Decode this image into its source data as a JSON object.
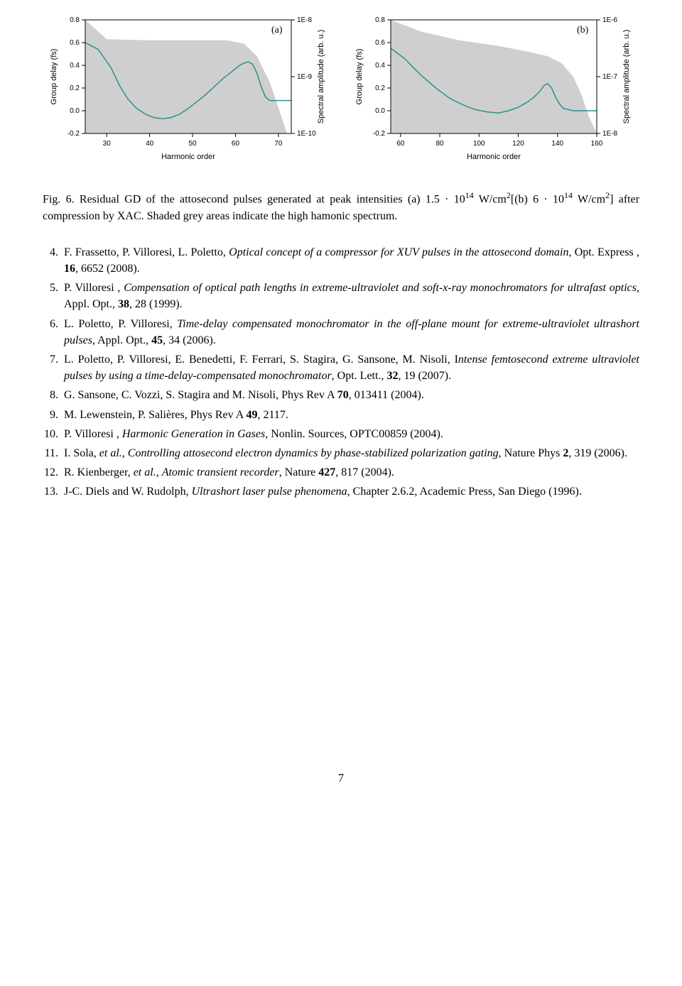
{
  "figure": {
    "panel_a": {
      "type": "line_with_area",
      "panel_label": "(a)",
      "xlabel": "Harmonic order",
      "ylabel_left": "Group delay (fs)",
      "ylabel_right": "Spectral amplitude (arb. u.)",
      "xlim": [
        25,
        73
      ],
      "xticks": [
        30,
        40,
        50,
        60,
        70
      ],
      "ylim_left": [
        -0.2,
        0.8
      ],
      "yticks_left": [
        -0.2,
        0.0,
        0.2,
        0.4,
        0.6,
        0.8
      ],
      "yticks_right_labels": [
        "1E-10",
        "1E-9",
        "1E-8"
      ],
      "yticks_right_pos": [
        0.0,
        0.5,
        1.0
      ],
      "label_fontsize": 11,
      "tick_fontsize": 10,
      "line_color": "#2f8f8f",
      "line_width": 1.5,
      "area_color": "#cfcfcf",
      "bg_color": "#ffffff",
      "axis_color": "#000000",
      "curve": [
        [
          25,
          0.6
        ],
        [
          28,
          0.54
        ],
        [
          31,
          0.38
        ],
        [
          33,
          0.22
        ],
        [
          35,
          0.1
        ],
        [
          37,
          0.02
        ],
        [
          39,
          -0.03
        ],
        [
          41,
          -0.06
        ],
        [
          43,
          -0.07
        ],
        [
          45,
          -0.06
        ],
        [
          47,
          -0.03
        ],
        [
          49,
          0.02
        ],
        [
          51,
          0.08
        ],
        [
          53,
          0.14
        ],
        [
          55,
          0.21
        ],
        [
          57,
          0.28
        ],
        [
          59,
          0.34
        ],
        [
          60,
          0.37
        ],
        [
          61,
          0.4
        ],
        [
          62,
          0.42
        ],
        [
          63,
          0.43
        ],
        [
          64,
          0.41
        ],
        [
          65,
          0.33
        ],
        [
          66,
          0.21
        ],
        [
          67,
          0.12
        ],
        [
          68,
          0.09
        ],
        [
          70,
          0.09
        ],
        [
          73,
          0.09
        ]
      ],
      "area": [
        [
          25,
          0.8
        ],
        [
          30,
          0.63
        ],
        [
          40,
          0.62
        ],
        [
          50,
          0.62
        ],
        [
          58,
          0.62
        ],
        [
          62,
          0.59
        ],
        [
          65,
          0.48
        ],
        [
          68,
          0.25
        ],
        [
          70,
          0.03
        ],
        [
          72,
          -0.2
        ],
        [
          73,
          -0.2
        ]
      ]
    },
    "panel_b": {
      "type": "line_with_area",
      "panel_label": "(b)",
      "xlabel": "Harmonic order",
      "ylabel_left": "Group delay (fs)",
      "ylabel_right": "Spectral amplitude (arb. u.)",
      "xlim": [
        55,
        160
      ],
      "xticks": [
        60,
        80,
        100,
        120,
        140,
        160
      ],
      "ylim_left": [
        -0.2,
        0.8
      ],
      "yticks_left": [
        -0.2,
        0.0,
        0.2,
        0.4,
        0.6,
        0.8
      ],
      "yticks_right_labels": [
        "1E-8",
        "1E-7",
        "1E-6"
      ],
      "yticks_right_pos": [
        0.0,
        0.5,
        1.0
      ],
      "label_fontsize": 11,
      "tick_fontsize": 10,
      "line_color": "#2f8f8f",
      "line_width": 1.5,
      "area_color": "#cfcfcf",
      "bg_color": "#ffffff",
      "axis_color": "#000000",
      "curve": [
        [
          55,
          0.55
        ],
        [
          62,
          0.46
        ],
        [
          70,
          0.32
        ],
        [
          78,
          0.2
        ],
        [
          85,
          0.11
        ],
        [
          92,
          0.05
        ],
        [
          98,
          0.01
        ],
        [
          104,
          -0.01
        ],
        [
          110,
          -0.02
        ],
        [
          115,
          0.0
        ],
        [
          120,
          0.03
        ],
        [
          125,
          0.08
        ],
        [
          128,
          0.12
        ],
        [
          131,
          0.17
        ],
        [
          133,
          0.22
        ],
        [
          135,
          0.24
        ],
        [
          137,
          0.2
        ],
        [
          139,
          0.12
        ],
        [
          141,
          0.06
        ],
        [
          143,
          0.02
        ],
        [
          148,
          0.0
        ],
        [
          155,
          0.0
        ],
        [
          160,
          0.0
        ]
      ],
      "area": [
        [
          55,
          0.8
        ],
        [
          70,
          0.7
        ],
        [
          90,
          0.62
        ],
        [
          110,
          0.57
        ],
        [
          125,
          0.52
        ],
        [
          135,
          0.48
        ],
        [
          142,
          0.42
        ],
        [
          148,
          0.3
        ],
        [
          152,
          0.15
        ],
        [
          156,
          -0.05
        ],
        [
          160,
          -0.2
        ]
      ]
    }
  },
  "caption": {
    "prefix": "Fig. 6.",
    "body1": " Residual GD of the attosecond pulses generated at peak intensities (a) 1.5 · 10",
    "exp1": "14",
    "unit1": " W/cm",
    "exp2": "2",
    "mid": "[(b) 6 · 10",
    "exp3": "14",
    "unit2": " W/cm",
    "exp4": "2",
    "body2": "] after compression by XAC. Shaded grey areas indicate the high hamonic spectrum."
  },
  "references": [
    {
      "n": 4,
      "html": "F. Frassetto, P. Villoresi, L. Poletto, <span class='italic'>Optical concept of a compressor for XUV pulses in the attosecond domain</span>, Opt. Express , <span class='bold'>16</span>, 6652 (2008)."
    },
    {
      "n": 5,
      "html": "P. Villoresi , <span class='italic'>Compensation of optical path lengths in extreme-ultraviolet and soft-x-ray monochromators for ultrafast optics</span>, Appl. Opt., <span class='bold'>38</span>, 28 (1999)."
    },
    {
      "n": 6,
      "html": "L. Poletto, P. Villoresi, <span class='italic'>Time-delay compensated monochromator in the off-plane mount for extreme-ultraviolet ultrashort pulses</span>, Appl. Opt., <span class='bold'>45</span>, 34 (2006)."
    },
    {
      "n": 7,
      "html": "L. Poletto, P. Villoresi, E. Benedetti, F. Ferrari, S. Stagira, G. Sansone, M. Nisoli, I<span class='italic'>ntense femtosecond extreme ultraviolet pulses by using a time-delay-compensated monochromator</span>, Opt. Lett., <span class='bold'>32</span>, 19 (2007)."
    },
    {
      "n": 8,
      "html": "G. Sansone, C. Vozzi, S. Stagira and M. Nisoli, Phys Rev A <span class='bold'>70</span>, 013411 (2004)."
    },
    {
      "n": 9,
      "html": "M. Lewenstein, P. Salières, Phys Rev A <span class='bold'>49</span>, 2117."
    },
    {
      "n": 10,
      "html": "P. Villoresi , <span class='italic'>Harmonic Generation in Gases</span>, Nonlin. Sources, OPTC00859 (2004)."
    },
    {
      "n": 11,
      "html": "I. Sola, <span class='italic'>et al.</span>, <span class='italic'>Controlling attosecond electron dynamics by phase-stabilized polarization gating</span>, Nature Phys <span class='bold'>2</span>, 319 (2006)."
    },
    {
      "n": 12,
      "html": "R. Kienberger, <span class='italic'>et al.</span>, <span class='italic'>Atomic transient recorder</span>, Nature <span class='bold'>427</span>, 817 (2004)."
    },
    {
      "n": 13,
      "html": "J-C. Diels and W. Rudolph, <span class='italic'>Ultrashort laser pulse phenomena</span>, Chapter 2.6.2, Academic Press, San Diego (1996)."
    }
  ],
  "page_number": "7"
}
